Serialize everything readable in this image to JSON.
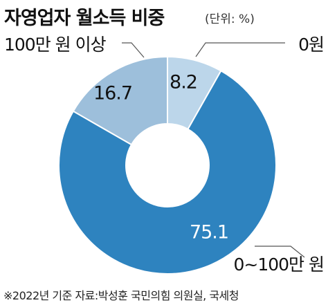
{
  "header": {
    "title": "자영업자 월소득 비중",
    "unit": "(단위: %)"
  },
  "footer": {
    "source": "※2022년 기준 자료:박성훈 국민의힘 의원실, 국세청"
  },
  "colors": {
    "zero": "#bcd6ea",
    "under_100": "#2e83bf",
    "over_100": "#9dbfdb",
    "leader": "#555555"
  },
  "chart_data": {
    "type": "pie",
    "donut": true,
    "title": "자영업자 월소득 비중",
    "unit": "(단위: %)",
    "slices": [
      {
        "label": "0원",
        "value": 8.2,
        "value_text": "8.2"
      },
      {
        "label": "0~100만 원",
        "value": 75.1,
        "value_text": "75.1"
      },
      {
        "label": "100만 원 이상",
        "value": 16.7,
        "value_text": "16.7"
      }
    ]
  }
}
